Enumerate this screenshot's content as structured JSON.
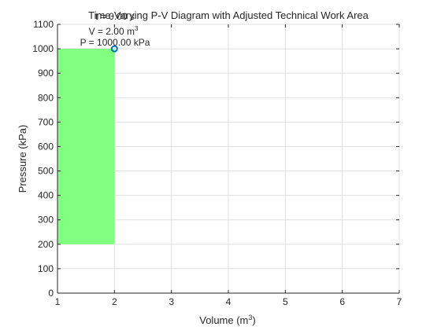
{
  "chart_data": {
    "type": "area",
    "title": "Time-Varying P-V Diagram with Adjusted Technical Work Area",
    "xlabel": "Volume (m",
    "xlabel_sup": "3",
    "xlabel_close": ")",
    "ylabel": "Pressure (kPa)",
    "xlim": [
      1,
      7
    ],
    "ylim": [
      0,
      1100
    ],
    "grid": true,
    "x_ticks": [
      1,
      2,
      3,
      4,
      5,
      6,
      7
    ],
    "y_ticks": [
      0,
      100,
      200,
      300,
      400,
      500,
      600,
      700,
      800,
      900,
      1000,
      1100
    ],
    "area": {
      "x_range": [
        1,
        2
      ],
      "y_range": [
        200,
        1000
      ],
      "color": "#80ff80"
    },
    "marker": {
      "x": 2,
      "y": 1000,
      "color": "#0072bd"
    },
    "annotations": {
      "time": "t = 0.00 s",
      "volume": "V = 2.00 m",
      "volume_sup": "3",
      "pressure": "P = 1000.00 kPa"
    }
  }
}
